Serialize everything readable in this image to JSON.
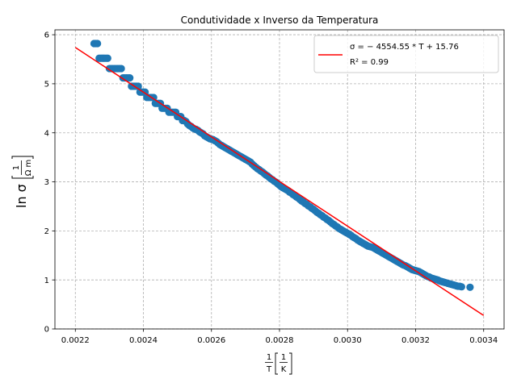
{
  "chart_data": {
    "type": "scatter",
    "title": "Condutividade x Inverso da Temperatura",
    "xlabel": {
      "frac_num": "1",
      "frac_den": "T",
      "unit_num": "1",
      "unit_den": "K"
    },
    "ylabel": {
      "prefix": "ln σ",
      "unit_num": "1",
      "unit_den": "Ω m"
    },
    "xlim": [
      0.00214,
      0.00346
    ],
    "ylim": [
      0,
      6.1
    ],
    "x_ticks": [
      0.0022,
      0.0024,
      0.0026,
      0.0028,
      0.003,
      0.0032,
      0.0034
    ],
    "x_tick_labels": [
      "0.0022",
      "0.0024",
      "0.0026",
      "0.0028",
      "0.0030",
      "0.0032",
      "0.0034"
    ],
    "y_ticks": [
      0,
      1,
      2,
      3,
      4,
      5,
      6
    ],
    "y_tick_labels": [
      "0",
      "1",
      "2",
      "3",
      "4",
      "5",
      "6"
    ],
    "grid": true,
    "grid_style": "dashed",
    "legend_position": "top-right",
    "colors": {
      "points": "#1f77b4",
      "fit": "#ff0000",
      "grid": "#b0b0b0"
    },
    "fit_line": {
      "slope": -4554.55,
      "intercept": 15.76,
      "x_range": [
        0.0022,
        0.0034
      ],
      "label": "σ = − 4554.55 * T + 15.76",
      "r2_label": "R² = 0.99"
    },
    "points": [
      [
        0.002255,
        5.82
      ],
      [
        0.00226,
        5.82
      ],
      [
        0.002265,
        5.82
      ],
      [
        0.00227,
        5.52
      ],
      [
        0.002275,
        5.52
      ],
      [
        0.00228,
        5.52
      ],
      [
        0.002285,
        5.52
      ],
      [
        0.00229,
        5.52
      ],
      [
        0.002295,
        5.52
      ],
      [
        0.0023,
        5.31
      ],
      [
        0.002305,
        5.31
      ],
      [
        0.00231,
        5.31
      ],
      [
        0.002315,
        5.31
      ],
      [
        0.00232,
        5.31
      ],
      [
        0.002325,
        5.31
      ],
      [
        0.00233,
        5.31
      ],
      [
        0.002335,
        5.31
      ],
      [
        0.00234,
        5.12
      ],
      [
        0.002345,
        5.12
      ],
      [
        0.00235,
        5.12
      ],
      [
        0.002355,
        5.12
      ],
      [
        0.00236,
        5.12
      ],
      [
        0.002365,
        4.95
      ],
      [
        0.00237,
        4.95
      ],
      [
        0.002375,
        4.95
      ],
      [
        0.00238,
        4.95
      ],
      [
        0.002385,
        4.95
      ],
      [
        0.00239,
        4.83
      ],
      [
        0.002395,
        4.83
      ],
      [
        0.0024,
        4.83
      ],
      [
        0.002405,
        4.83
      ],
      [
        0.00241,
        4.72
      ],
      [
        0.002415,
        4.72
      ],
      [
        0.00242,
        4.72
      ],
      [
        0.002425,
        4.72
      ],
      [
        0.00243,
        4.72
      ],
      [
        0.002435,
        4.6
      ],
      [
        0.00244,
        4.6
      ],
      [
        0.002445,
        4.6
      ],
      [
        0.00245,
        4.6
      ],
      [
        0.002455,
        4.5
      ],
      [
        0.00246,
        4.5
      ],
      [
        0.002465,
        4.5
      ],
      [
        0.00247,
        4.5
      ],
      [
        0.002475,
        4.42
      ],
      [
        0.00248,
        4.42
      ],
      [
        0.002485,
        4.42
      ],
      [
        0.00249,
        4.42
      ],
      [
        0.002495,
        4.42
      ],
      [
        0.0025,
        4.33
      ],
      [
        0.002505,
        4.33
      ],
      [
        0.00251,
        4.33
      ],
      [
        0.002515,
        4.25
      ],
      [
        0.00252,
        4.25
      ],
      [
        0.002525,
        4.23
      ],
      [
        0.00253,
        4.18
      ],
      [
        0.002535,
        4.15
      ],
      [
        0.00254,
        4.13
      ],
      [
        0.002545,
        4.1
      ],
      [
        0.00255,
        4.08
      ],
      [
        0.002555,
        4.07
      ],
      [
        0.00256,
        4.05
      ],
      [
        0.002565,
        4.02
      ],
      [
        0.00257,
        4.0
      ],
      [
        0.002575,
        3.98
      ],
      [
        0.00258,
        3.94
      ],
      [
        0.002585,
        3.92
      ],
      [
        0.00259,
        3.9
      ],
      [
        0.002595,
        3.88
      ],
      [
        0.0026,
        3.87
      ],
      [
        0.002605,
        3.86
      ],
      [
        0.00261,
        3.84
      ],
      [
        0.002615,
        3.82
      ],
      [
        0.00262,
        3.79
      ],
      [
        0.002625,
        3.76
      ],
      [
        0.00263,
        3.74
      ],
      [
        0.002635,
        3.72
      ],
      [
        0.00264,
        3.7
      ],
      [
        0.002645,
        3.68
      ],
      [
        0.00265,
        3.66
      ],
      [
        0.002655,
        3.64
      ],
      [
        0.00266,
        3.62
      ],
      [
        0.002665,
        3.6
      ],
      [
        0.00267,
        3.58
      ],
      [
        0.002675,
        3.56
      ],
      [
        0.00268,
        3.54
      ],
      [
        0.002685,
        3.52
      ],
      [
        0.00269,
        3.5
      ],
      [
        0.002695,
        3.48
      ],
      [
        0.0027,
        3.46
      ],
      [
        0.002705,
        3.44
      ],
      [
        0.00271,
        3.42
      ],
      [
        0.002715,
        3.4
      ],
      [
        0.00272,
        3.36
      ],
      [
        0.002725,
        3.33
      ],
      [
        0.00273,
        3.3
      ],
      [
        0.002735,
        3.27
      ],
      [
        0.00274,
        3.25
      ],
      [
        0.002745,
        3.22
      ],
      [
        0.00275,
        3.2
      ],
      [
        0.002755,
        3.17
      ],
      [
        0.00276,
        3.14
      ],
      [
        0.002765,
        3.12
      ],
      [
        0.00277,
        3.09
      ],
      [
        0.002775,
        3.06
      ],
      [
        0.00278,
        3.04
      ],
      [
        0.002785,
        3.01
      ],
      [
        0.00279,
        2.99
      ],
      [
        0.002795,
        2.96
      ],
      [
        0.0028,
        2.93
      ],
      [
        0.002805,
        2.9
      ],
      [
        0.00281,
        2.88
      ],
      [
        0.002815,
        2.86
      ],
      [
        0.00282,
        2.84
      ],
      [
        0.002825,
        2.82
      ],
      [
        0.00283,
        2.79
      ],
      [
        0.002835,
        2.77
      ],
      [
        0.00284,
        2.74
      ],
      [
        0.002845,
        2.72
      ],
      [
        0.00285,
        2.69
      ],
      [
        0.002855,
        2.67
      ],
      [
        0.00286,
        2.64
      ],
      [
        0.002865,
        2.61
      ],
      [
        0.00287,
        2.59
      ],
      [
        0.002875,
        2.56
      ],
      [
        0.00288,
        2.54
      ],
      [
        0.002885,
        2.51
      ],
      [
        0.00289,
        2.49
      ],
      [
        0.002895,
        2.46
      ],
      [
        0.0029,
        2.44
      ],
      [
        0.002905,
        2.41
      ],
      [
        0.00291,
        2.38
      ],
      [
        0.002915,
        2.36
      ],
      [
        0.00292,
        2.33
      ],
      [
        0.002925,
        2.31
      ],
      [
        0.00293,
        2.28
      ],
      [
        0.002935,
        2.26
      ],
      [
        0.00294,
        2.23
      ],
      [
        0.002945,
        2.21
      ],
      [
        0.00295,
        2.18
      ],
      [
        0.002955,
        2.15
      ],
      [
        0.00296,
        2.13
      ],
      [
        0.002965,
        2.1
      ],
      [
        0.00297,
        2.08
      ],
      [
        0.002975,
        2.05
      ],
      [
        0.00298,
        2.03
      ],
      [
        0.002985,
        2.01
      ],
      [
        0.00299,
        1.99
      ],
      [
        0.002995,
        1.97
      ],
      [
        0.003,
        1.95
      ],
      [
        0.003005,
        1.93
      ],
      [
        0.00301,
        1.91
      ],
      [
        0.003015,
        1.88
      ],
      [
        0.00302,
        1.86
      ],
      [
        0.003025,
        1.84
      ],
      [
        0.00303,
        1.81
      ],
      [
        0.003035,
        1.79
      ],
      [
        0.00304,
        1.77
      ],
      [
        0.003045,
        1.75
      ],
      [
        0.00305,
        1.73
      ],
      [
        0.003055,
        1.71
      ],
      [
        0.00306,
        1.69
      ],
      [
        0.003065,
        1.68
      ],
      [
        0.00307,
        1.67
      ],
      [
        0.003075,
        1.66
      ],
      [
        0.00308,
        1.64
      ],
      [
        0.003085,
        1.62
      ],
      [
        0.00309,
        1.6
      ],
      [
        0.003095,
        1.58
      ],
      [
        0.0031,
        1.56
      ],
      [
        0.003105,
        1.54
      ],
      [
        0.00311,
        1.52
      ],
      [
        0.003115,
        1.5
      ],
      [
        0.00312,
        1.48
      ],
      [
        0.003125,
        1.46
      ],
      [
        0.00313,
        1.44
      ],
      [
        0.003135,
        1.42
      ],
      [
        0.00314,
        1.4
      ],
      [
        0.003145,
        1.38
      ],
      [
        0.00315,
        1.36
      ],
      [
        0.003155,
        1.34
      ],
      [
        0.00316,
        1.32
      ],
      [
        0.003165,
        1.3
      ],
      [
        0.00317,
        1.29
      ],
      [
        0.003175,
        1.27
      ],
      [
        0.00318,
        1.25
      ],
      [
        0.003185,
        1.23
      ],
      [
        0.00319,
        1.21
      ],
      [
        0.003195,
        1.2
      ],
      [
        0.0032,
        1.19
      ],
      [
        0.003205,
        1.18
      ],
      [
        0.00321,
        1.17
      ],
      [
        0.003215,
        1.15
      ],
      [
        0.00322,
        1.13
      ],
      [
        0.003225,
        1.11
      ],
      [
        0.00323,
        1.09
      ],
      [
        0.003235,
        1.07
      ],
      [
        0.00324,
        1.06
      ],
      [
        0.003245,
        1.04
      ],
      [
        0.00325,
        1.03
      ],
      [
        0.003255,
        1.02
      ],
      [
        0.00326,
        1.01
      ],
      [
        0.003265,
        1.0
      ],
      [
        0.00327,
        0.98
      ],
      [
        0.003275,
        0.97
      ],
      [
        0.00328,
        0.96
      ],
      [
        0.003285,
        0.95
      ],
      [
        0.00329,
        0.94
      ],
      [
        0.003295,
        0.93
      ],
      [
        0.0033,
        0.92
      ],
      [
        0.003305,
        0.91
      ],
      [
        0.00331,
        0.9
      ],
      [
        0.003315,
        0.89
      ],
      [
        0.00332,
        0.88
      ],
      [
        0.003325,
        0.87
      ],
      [
        0.00333,
        0.87
      ],
      [
        0.003335,
        0.86
      ],
      [
        0.00336,
        0.85
      ]
    ]
  }
}
